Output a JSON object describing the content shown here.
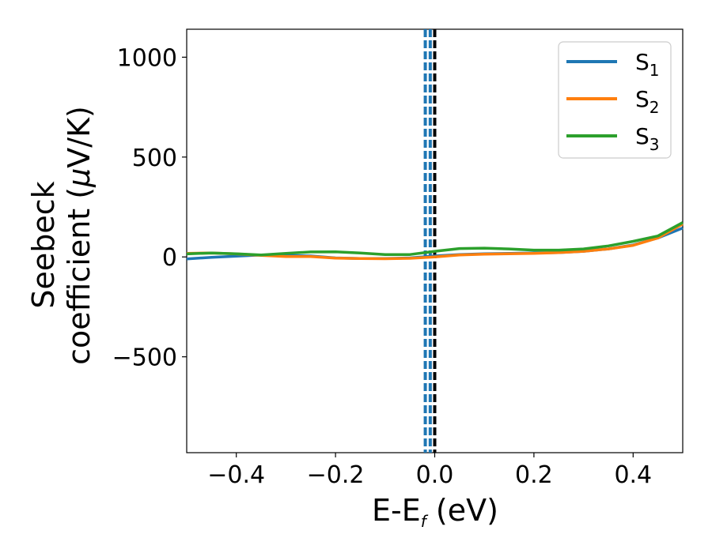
{
  "chart_data": {
    "type": "line",
    "xlabel": {
      "main": "E-E",
      "sub": "f",
      "tail": " (eV)"
    },
    "ylabel": {
      "line1": "Seebeck",
      "line2_prefix": "coefficient  (",
      "mu": "μ",
      "line2_suffix": "V/K)"
    },
    "xlim": [
      -0.5,
      0.5
    ],
    "ylim": [
      -980,
      1140
    ],
    "x_ticks": [
      -0.4,
      -0.2,
      0.0,
      0.2,
      0.4
    ],
    "x_tick_labels": [
      "−0.4",
      "−0.2",
      "0.0",
      "0.2",
      "0.4"
    ],
    "y_ticks": [
      -500,
      0,
      500,
      1000
    ],
    "y_tick_labels": [
      "−500",
      "0",
      "500",
      "1000"
    ],
    "legend_position": "top-right",
    "vlines": [
      {
        "x": 0.0,
        "color": "#000000",
        "style": "dashed"
      },
      {
        "x": -0.009,
        "color": "#1f77b4",
        "style": "dashed"
      },
      {
        "x": -0.019,
        "color": "#1f77b4",
        "style": "dashed"
      }
    ],
    "series": [
      {
        "name": "S",
        "sub": "1",
        "color": "#1f77b4",
        "x": [
          -0.5,
          -0.45,
          -0.4,
          -0.35,
          -0.3,
          -0.25,
          -0.2,
          -0.15,
          -0.1,
          -0.05,
          0.0,
          0.05,
          0.1,
          0.15,
          0.2,
          0.25,
          0.3,
          0.35,
          0.4,
          0.45,
          0.5
        ],
        "y": [
          -10,
          -2,
          4,
          10,
          8,
          5,
          -5,
          -8,
          -8,
          -5,
          5,
          12,
          16,
          18,
          20,
          22,
          28,
          40,
          60,
          95,
          145
        ]
      },
      {
        "name": "S",
        "sub": "2",
        "color": "#ff7f0e",
        "x": [
          -0.5,
          -0.45,
          -0.4,
          -0.35,
          -0.3,
          -0.25,
          -0.2,
          -0.15,
          -0.1,
          -0.05,
          0.0,
          0.05,
          0.1,
          0.15,
          0.2,
          0.25,
          0.3,
          0.35,
          0.4,
          0.45,
          0.5
        ],
        "y": [
          18,
          20,
          15,
          8,
          2,
          2,
          -6,
          -8,
          -9,
          -7,
          0,
          10,
          14,
          16,
          18,
          22,
          28,
          40,
          58,
          95,
          165
        ]
      },
      {
        "name": "S",
        "sub": "3",
        "color": "#2ca02c",
        "x": [
          -0.5,
          -0.45,
          -0.4,
          -0.35,
          -0.3,
          -0.25,
          -0.2,
          -0.15,
          -0.1,
          -0.05,
          0.0,
          0.05,
          0.1,
          0.15,
          0.2,
          0.25,
          0.3,
          0.35,
          0.4,
          0.45,
          0.5
        ],
        "y": [
          15,
          20,
          16,
          10,
          18,
          25,
          26,
          20,
          12,
          12,
          28,
          42,
          44,
          40,
          34,
          34,
          40,
          55,
          78,
          105,
          172
        ]
      }
    ]
  }
}
